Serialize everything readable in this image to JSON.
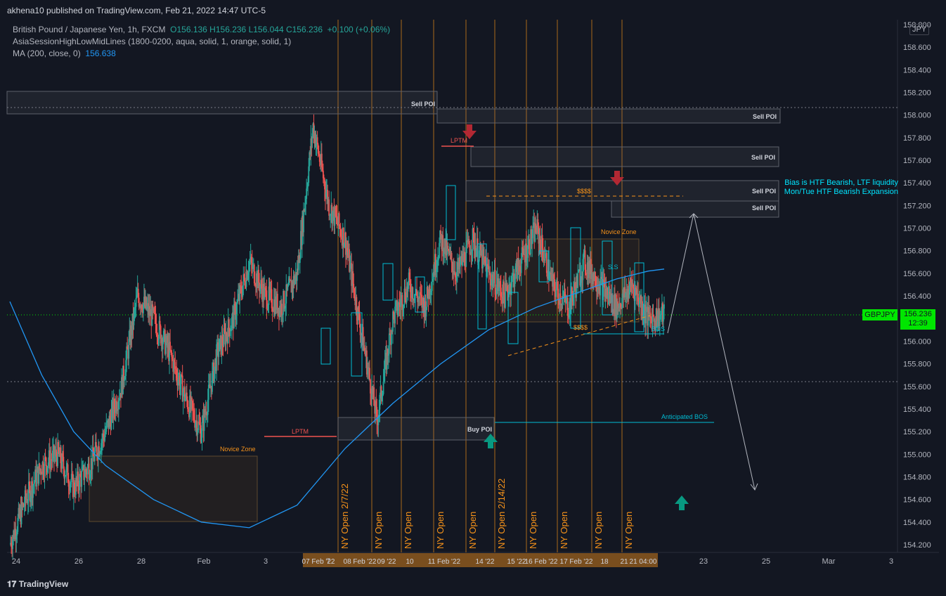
{
  "header": {
    "published": "akhena10 published on TradingView.com, Feb 21, 2022 14:47 UTC-5",
    "brand": "TradingView"
  },
  "legend": {
    "symbol": "British Pound / Japanese Yen, 1h, FXCM",
    "ohlc": "O156.136  H156.236  L156.044  C156.236",
    "change": "+0.100 (+0.06%)",
    "indicator1": "AsiaSessionHighLowMidLines (1800-0200, aqua, solid, 1, orange, solid, 1)",
    "ma_label": "MA (200, close, 0)",
    "ma_value": "156.638"
  },
  "price_scale": {
    "currency": "JPY",
    "ticks": [
      "158.800",
      "158.600",
      "158.400",
      "158.200",
      "158.000",
      "157.800",
      "157.600",
      "157.400",
      "157.200",
      "157.000",
      "156.800",
      "156.600",
      "156.400",
      "156.200",
      "156.000",
      "155.800",
      "155.600",
      "155.400",
      "155.200",
      "155.000",
      "154.800",
      "154.600",
      "154.400",
      "154.200"
    ],
    "last_price": "156.236",
    "countdown": "12:39",
    "symbol_tag": "GBPJPY"
  },
  "time_axis": {
    "labels": [
      "24",
      "26",
      "28",
      "Feb",
      "3",
      "7",
      "23",
      "25",
      "Mar",
      "3"
    ],
    "highlight_labels": [
      "07 Feb '22",
      "08 Feb '22",
      "09 '22",
      "10",
      "11 Feb '22",
      "14 '22",
      "15 '22",
      "16 Feb '22",
      "17 Feb '22",
      "18",
      "21",
      "21 04:00"
    ]
  },
  "annotations": {
    "sell_poi": "Sell POI",
    "buy_poi": "Buy POI",
    "lptm": "LPTM",
    "novice_zone": "Novice Zone",
    "dollars": "$$$$",
    "bos": "BOS",
    "anticipated_bos": "Anticipated BOS",
    "ss": "S.S",
    "bias_line1": "Bias is HTF Bearish, LTF liquidity",
    "bias_line2": "Mon/Tue HTF Bearish Expansion"
  },
  "ny_open_labels": [
    "NY Open 2/7/22",
    "NY Open",
    "NY Open",
    "NY Open",
    "NY Open",
    "NY Open 2/14/22",
    "NY Open",
    "NY Open",
    "NY Open",
    "NY Open"
  ],
  "colors": {
    "background": "#131722",
    "up": "#26a69a",
    "down": "#ef5350",
    "ma": "#2196f3",
    "session": "#f7931a",
    "aqua": "#00bcd4",
    "price_line": "#00e600"
  },
  "chart_data": {
    "type": "candlestick",
    "symbol": "GBPJPY",
    "timeframe": "1h",
    "y_range": [
      154.1,
      158.9
    ],
    "last_close": 156.236,
    "ma200_last": 156.638,
    "ma_path": [
      [
        0,
        156.35
      ],
      [
        2,
        155.7
      ],
      [
        4,
        155.2
      ],
      [
        6,
        154.9
      ],
      [
        9,
        154.6
      ],
      [
        12,
        154.4
      ],
      [
        15,
        154.35
      ],
      [
        18,
        154.55
      ],
      [
        21,
        155.05
      ],
      [
        24,
        155.45
      ],
      [
        27,
        155.8
      ],
      [
        30,
        156.1
      ],
      [
        33,
        156.3
      ],
      [
        36,
        156.45
      ],
      [
        38,
        156.55
      ],
      [
        40,
        156.62
      ],
      [
        41,
        156.638
      ]
    ],
    "price_path": [
      [
        0,
        154.2
      ],
      [
        1,
        154.6
      ],
      [
        2,
        154.9
      ],
      [
        3,
        155.0
      ],
      [
        4,
        154.7
      ],
      [
        5,
        154.9
      ],
      [
        6,
        155.2
      ],
      [
        7,
        155.6
      ],
      [
        8,
        156.4
      ],
      [
        9,
        156.2
      ],
      [
        10,
        155.9
      ],
      [
        11,
        155.5
      ],
      [
        12,
        155.2
      ],
      [
        13,
        155.9
      ],
      [
        14,
        156.2
      ],
      [
        15,
        156.7
      ],
      [
        16,
        156.4
      ],
      [
        17,
        156.3
      ],
      [
        18,
        156.6
      ],
      [
        19,
        157.9
      ],
      [
        20,
        157.2
      ],
      [
        21,
        156.9
      ],
      [
        22,
        156.1
      ],
      [
        23,
        155.3
      ],
      [
        24,
        156.2
      ],
      [
        25,
        156.5
      ],
      [
        26,
        156.3
      ],
      [
        27,
        156.9
      ],
      [
        28,
        156.6
      ],
      [
        29,
        156.9
      ],
      [
        30,
        156.6
      ],
      [
        31,
        156.4
      ],
      [
        32,
        156.7
      ],
      [
        33,
        157.0
      ],
      [
        34,
        156.5
      ],
      [
        35,
        156.3
      ],
      [
        36,
        156.7
      ],
      [
        37,
        156.5
      ],
      [
        38,
        156.3
      ],
      [
        39,
        156.5
      ],
      [
        40,
        156.2
      ],
      [
        41,
        156.236
      ]
    ],
    "sell_poi_levels": [
      [
        158.0,
        158.2
      ],
      [
        157.95,
        158.05
      ],
      [
        157.55,
        157.75
      ],
      [
        157.25,
        157.45
      ],
      [
        157.1,
        157.25
      ]
    ],
    "buy_poi_level": [
      155.15,
      155.35
    ],
    "anticipated_bos_level": 155.3,
    "current_price": 156.236
  }
}
